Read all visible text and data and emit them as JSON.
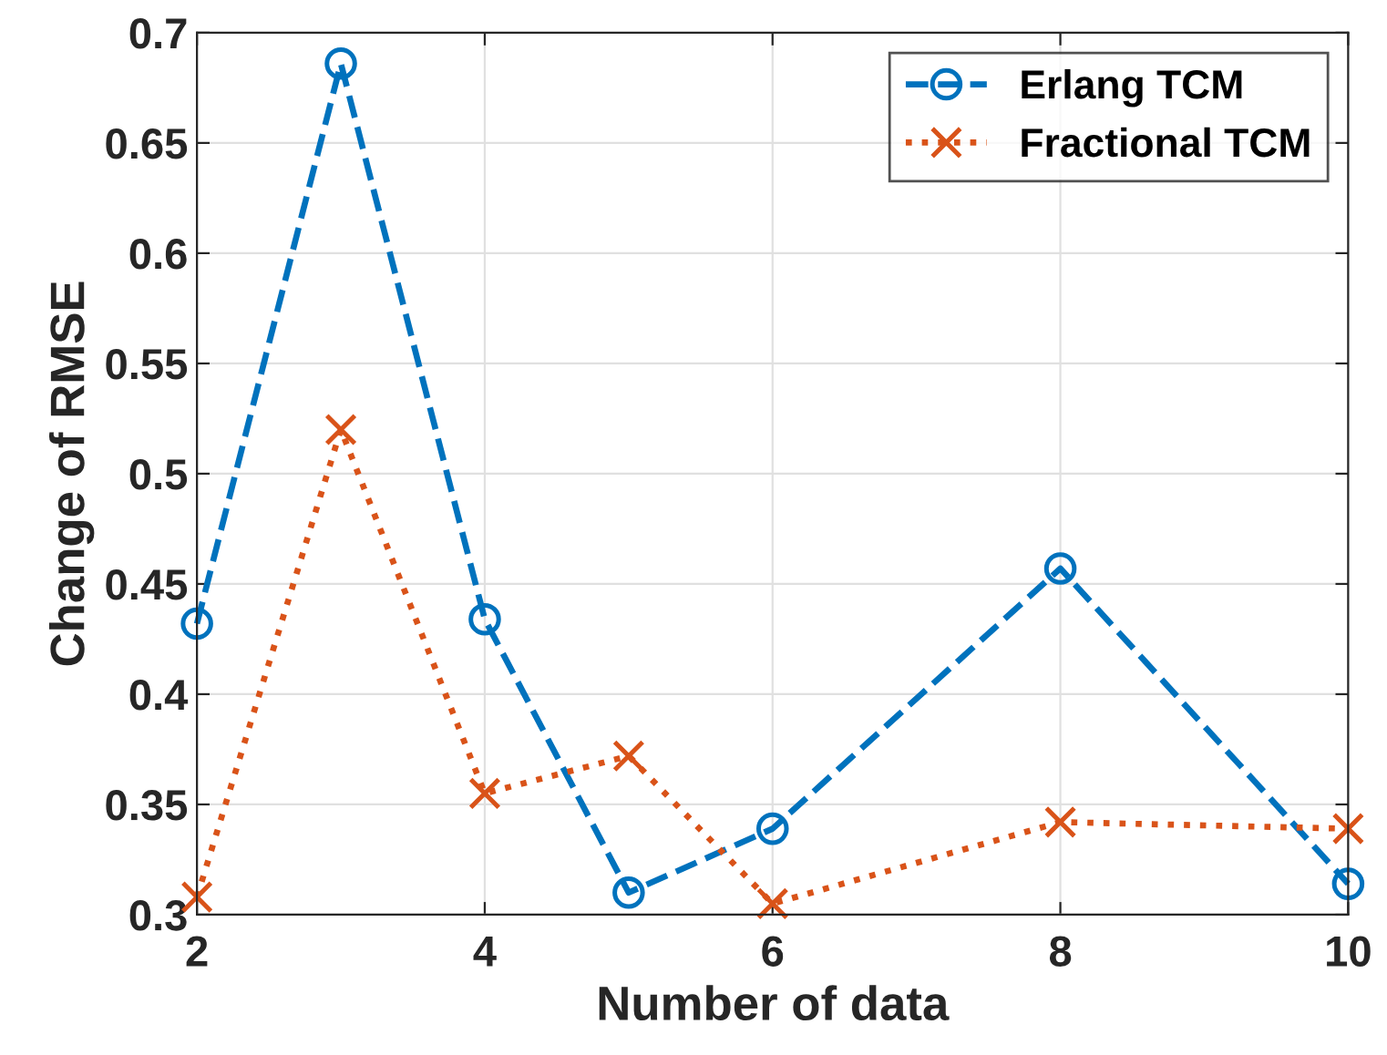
{
  "chart_data": {
    "type": "line",
    "xlabel": "Number of data",
    "ylabel": "Change of RMSE",
    "x": [
      2,
      3,
      4,
      5,
      6,
      8,
      10
    ],
    "series": [
      {
        "name": "Erlang TCM",
        "color": "#0072bd",
        "marker": "circle",
        "line_style": "dashed",
        "values": [
          0.432,
          0.686,
          0.434,
          0.31,
          0.339,
          0.457,
          0.314
        ]
      },
      {
        "name": "Fractional TCM",
        "color": "#d95319",
        "marker": "cross",
        "line_style": "dotted",
        "values": [
          0.308,
          0.52,
          0.355,
          0.372,
          0.305,
          0.342,
          0.339
        ]
      }
    ],
    "xlim": [
      2,
      10
    ],
    "xticks": [
      2,
      4,
      6,
      8,
      10
    ],
    "ylim": [
      0.3,
      0.7
    ],
    "yticks": [
      0.3,
      0.35,
      0.4,
      0.45,
      0.5,
      0.55,
      0.6,
      0.65,
      0.7
    ],
    "grid": true,
    "legend": "top right"
  }
}
